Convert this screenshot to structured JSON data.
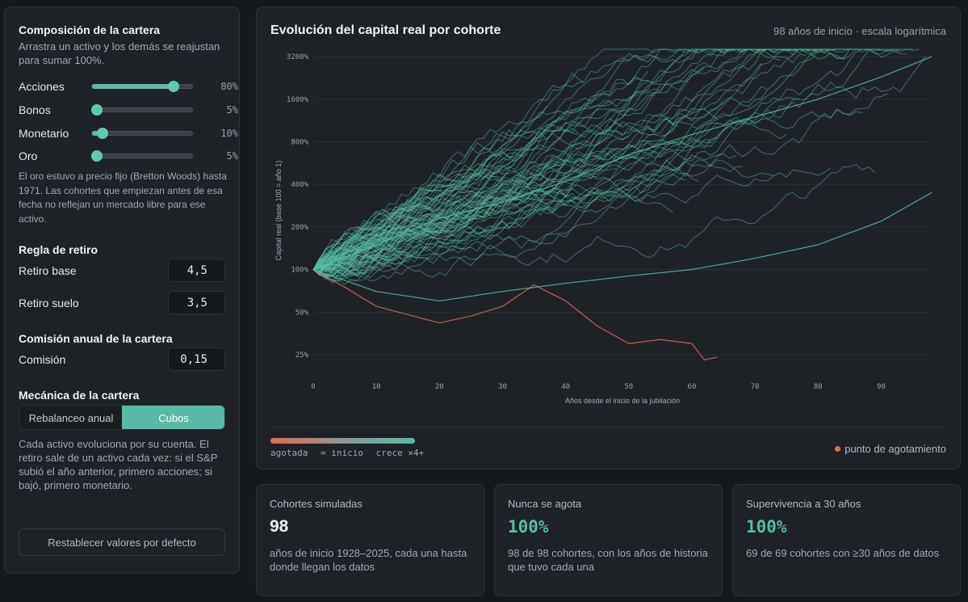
{
  "sidebar": {
    "composition": {
      "title": "Composición de la cartera",
      "description": "Arrastra un activo y los demás se reajustan para sumar 100%.",
      "assets": [
        {
          "label": "Acciones",
          "value": 80,
          "display": "80%"
        },
        {
          "label": "Bonos",
          "value": 5,
          "display": "5%"
        },
        {
          "label": "Monetario",
          "value": 10,
          "display": "10%"
        },
        {
          "label": "Oro",
          "value": 5,
          "display": "5%"
        }
      ],
      "gold_note": "El oro estuvo a precio fijo (Bretton Woods) hasta 1971. Las cohortes que empiezan antes de esa fecha no reflejan un mercado libre para ese activo."
    },
    "withdrawal": {
      "title": "Regla de retiro",
      "base_label": "Retiro base",
      "base_value": "4,5",
      "floor_label": "Retiro suelo",
      "floor_value": "3,5"
    },
    "fee": {
      "title": "Comisión anual de la cartera",
      "label": "Comisión",
      "value": "0,15"
    },
    "mechanics": {
      "title": "Mecánica de la cartera",
      "options": [
        "Rebalanceo anual",
        "Cubos"
      ],
      "selected": "Cubos",
      "description": "Cada activo evoluciona por su cuenta. El retiro sale de un activo cada vez: si el S&P subió el año anterior, primero acciones; si bajó, primero monetario."
    },
    "reset_label": "Restablecer valores por defecto"
  },
  "chart": {
    "title": "Evolución del capital real por cohorte",
    "subtitle": "98 años de inicio · escala logarítmica",
    "legend": {
      "low": "agotada",
      "mid": "= inicio",
      "high": "crece ×4+",
      "exhaust": "punto de agotamiento"
    }
  },
  "chart_data": {
    "type": "line",
    "title": "Evolución del capital real por cohorte",
    "xlabel": "Años desde el inicio de la jubilación",
    "ylabel": "Capital real (base 100 = año 1)",
    "yscale": "log",
    "ylim": [
      18,
      3800
    ],
    "xlim": [
      0,
      98
    ],
    "x_ticks": [
      0,
      10,
      20,
      30,
      40,
      50,
      60,
      70,
      80,
      90
    ],
    "y_ticks": [
      {
        "value": 25,
        "label": "25%"
      },
      {
        "value": 50,
        "label": "50%"
      },
      {
        "value": 100,
        "label": "100%"
      },
      {
        "value": 200,
        "label": "200%"
      },
      {
        "value": 400,
        "label": "400%"
      },
      {
        "value": 800,
        "label": "800%"
      },
      {
        "value": 1600,
        "label": "1600%"
      },
      {
        "value": 3200,
        "label": "3200%"
      }
    ],
    "grid": "horizontal",
    "color_low": "#e36a52",
    "color_high": "#57bba7",
    "cohort_count": 98,
    "series_generation_note": "98 cohorts, one per start year; each series begins at 100 and lasts (98 - i) years",
    "highlighted_series": [
      {
        "x": [
          0,
          5,
          10,
          15,
          20,
          25,
          30,
          35,
          40,
          45,
          50,
          55,
          60,
          62,
          64
        ],
        "y": [
          100,
          75,
          55,
          48,
          42,
          47,
          55,
          78,
          60,
          40,
          30,
          32,
          30,
          23,
          24
        ],
        "color": "#e36a52"
      },
      {
        "x": [
          0,
          10,
          20,
          30,
          40,
          50,
          60,
          70,
          80,
          90,
          98
        ],
        "y": [
          100,
          150,
          230,
          300,
          420,
          650,
          900,
          1200,
          1600,
          2300,
          3200
        ],
        "color": "#57bba7"
      },
      {
        "x": [
          0,
          10,
          20,
          30,
          40,
          50,
          60,
          70,
          80,
          90,
          98
        ],
        "y": [
          100,
          70,
          60,
          70,
          80,
          90,
          100,
          120,
          150,
          220,
          350
        ],
        "color": "#57bba7"
      }
    ]
  },
  "stats": [
    {
      "title": "Cohortes simuladas",
      "value": "98",
      "description": "años de inicio 1928–2025, cada una hasta donde llegan los datos",
      "accent": false
    },
    {
      "title": "Nunca se agota",
      "value": "100%",
      "description": "98 de 98 cohortes, con los años de historia que tuvo cada una",
      "accent": true
    },
    {
      "title": "Supervivencia a 30 años",
      "value": "100%",
      "description": "69 de 69 cohortes con ≥30 años de datos",
      "accent": true
    }
  ],
  "colors": {
    "accent": "#57bba7",
    "danger": "#e36a52",
    "background": "#16191c",
    "panel": "#1e2226"
  }
}
